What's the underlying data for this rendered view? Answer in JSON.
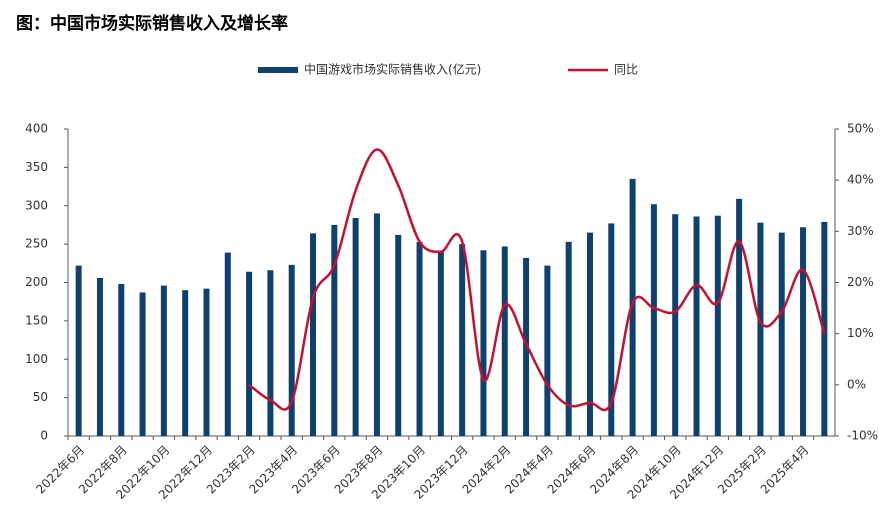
{
  "chart_data": {
    "type": "bar_line",
    "title": "图：中国市场实际销售收入及增长率",
    "categories": [
      "2022年6月",
      null,
      "2022年8月",
      null,
      "2022年10月",
      null,
      "2022年12月",
      null,
      "2023年2月",
      null,
      "2023年4月",
      null,
      "2023年6月",
      null,
      "2023年8月",
      null,
      "2023年10月",
      null,
      "2023年12月",
      null,
      "2024年2月",
      null,
      "2024年4月",
      null,
      "2024年6月",
      null,
      "2024年8月",
      null,
      "2024年10月",
      null,
      "2024年12月",
      null,
      "2025年2月",
      null,
      "2025年4月",
      null
    ],
    "series": [
      {
        "name": "中国游戏市场实际销售收入(亿元)",
        "type": "bar",
        "color": "#0e416f",
        "values": [
          222,
          206,
          198,
          187,
          196,
          190,
          192,
          239,
          214,
          216,
          223,
          264,
          275,
          284,
          290,
          262,
          253,
          240,
          250,
          242,
          247,
          232,
          222,
          253,
          265,
          277,
          335,
          302,
          289,
          286,
          287,
          309,
          278,
          265,
          272,
          279
        ]
      },
      {
        "name": "同比",
        "type": "line",
        "axis": "y2",
        "color": "#c8102e",
        "smooth": true,
        "values": [
          null,
          null,
          null,
          null,
          null,
          null,
          null,
          null,
          0,
          -3,
          -3.3,
          17,
          23.4,
          38,
          46,
          39,
          28,
          26,
          28,
          1,
          15.6,
          8,
          0,
          -4,
          -3.5,
          -3.5,
          16,
          15,
          14.3,
          19.5,
          16,
          28,
          12.3,
          14.3,
          22.5,
          10
        ]
      }
    ],
    "ylim": [
      0,
      400
    ],
    "yticks": [
      0,
      50,
      100,
      150,
      200,
      250,
      300,
      350,
      400
    ],
    "y2lim": [
      -10,
      50
    ],
    "y2ticks": [
      {
        "value": -10,
        "label": "-10%"
      },
      {
        "value": 0,
        "label": "0%"
      },
      {
        "value": 10,
        "label": "10%"
      },
      {
        "value": 20,
        "label": "20%"
      },
      {
        "value": 30,
        "label": "30%"
      },
      {
        "value": 40,
        "label": "40%"
      },
      {
        "value": 50,
        "label": "50%"
      }
    ],
    "legend": "top"
  }
}
